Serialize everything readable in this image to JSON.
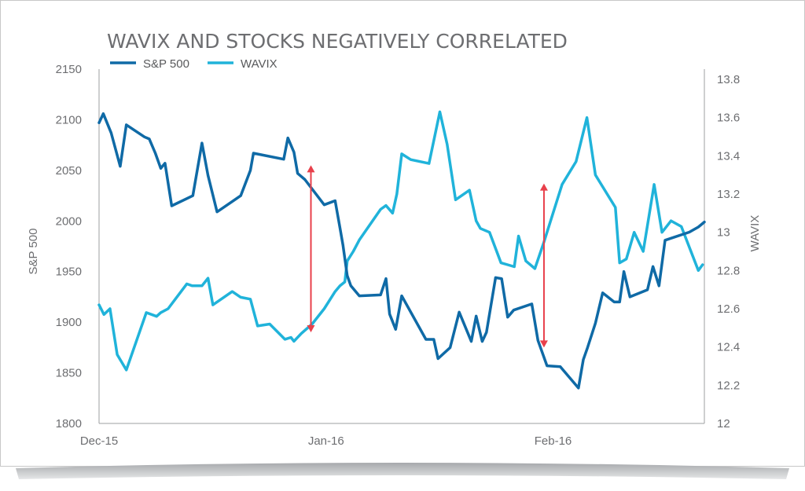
{
  "chart_data": {
    "type": "line",
    "title": "WAVIX AND STOCKS NEGATIVELY CORRELATED",
    "xlabel": "",
    "ylabel_left": "S&P 500",
    "ylabel_right": "WAVIX",
    "x_tick_labels": [
      "Dec-15",
      "Jan-16",
      "Feb-16"
    ],
    "x_tick_positions": [
      0,
      0.375,
      0.75
    ],
    "ylim_left": [
      1800,
      2150
    ],
    "yticks_left": [
      "1800",
      "1850",
      "1900",
      "1950",
      "2000",
      "2050",
      "2100",
      "2150"
    ],
    "ylim_right": [
      12,
      13.8
    ],
    "yticks_right": [
      "12",
      "12.2",
      "12.4",
      "12.6",
      "12.8",
      "13",
      "13.2",
      "13.4",
      "13.6",
      "13.8"
    ],
    "legend": [
      {
        "name": "S&P 500",
        "color": "#0f6aa6"
      },
      {
        "name": "WAVIX",
        "color": "#20b3da"
      }
    ],
    "series": [
      {
        "name": "S&P 500",
        "axis": "left",
        "color": "#0f6aa6",
        "x": [
          0,
          0.007,
          0.02,
          0.035,
          0.045,
          0.075,
          0.083,
          0.093,
          0.102,
          0.109,
          0.12,
          0.155,
          0.17,
          0.18,
          0.195,
          0.2,
          0.234,
          0.25,
          0.255,
          0.305,
          0.312,
          0.322,
          0.328,
          0.34,
          0.372,
          0.39,
          0.398,
          0.403,
          0.41,
          0.416,
          0.43,
          0.465,
          0.474,
          0.48,
          0.49,
          0.5,
          0.54,
          0.553,
          0.56,
          0.58,
          0.595,
          0.615,
          0.623,
          0.633,
          0.64,
          0.655,
          0.665,
          0.675,
          0.685,
          0.715,
          0.725,
          0.74,
          0.762,
          0.792,
          0.8,
          0.807,
          0.82,
          0.832,
          0.851,
          0.86,
          0.867,
          0.877,
          0.906,
          0.915,
          0.925,
          0.935,
          0.975,
          0.99,
          1.0
        ],
        "values": [
          2097,
          2106,
          2087,
          2054,
          2095,
          2083,
          2081,
          2067,
          2052,
          2057,
          2015,
          2025,
          2077,
          2045,
          2009,
          2011,
          2025,
          2050,
          2067,
          2061,
          2082,
          2068,
          2047,
          2041,
          2016,
          2020,
          1993,
          1976,
          1946,
          1936,
          1926,
          1927,
          1943,
          1908,
          1893,
          1926,
          1883,
          1883,
          1864,
          1875,
          1910,
          1881,
          1906,
          1881,
          1890,
          1944,
          1943,
          1905,
          1912,
          1918,
          1882,
          1857,
          1856,
          1835,
          1863,
          1875,
          1899,
          1929,
          1920,
          1920,
          1950,
          1925,
          1932,
          1955,
          1936,
          1981,
          1989,
          1994,
          1999
        ]
      },
      {
        "name": "WAVIX",
        "axis": "right",
        "color": "#20b3da",
        "x": [
          0,
          0.008,
          0.018,
          0.03,
          0.045,
          0.078,
          0.095,
          0.102,
          0.114,
          0.145,
          0.154,
          0.17,
          0.18,
          0.188,
          0.22,
          0.234,
          0.25,
          0.262,
          0.282,
          0.307,
          0.317,
          0.322,
          0.334,
          0.352,
          0.372,
          0.39,
          0.398,
          0.406,
          0.41,
          0.42,
          0.43,
          0.465,
          0.474,
          0.485,
          0.492,
          0.5,
          0.515,
          0.545,
          0.563,
          0.575,
          0.589,
          0.612,
          0.623,
          0.63,
          0.645,
          0.664,
          0.675,
          0.686,
          0.693,
          0.705,
          0.72,
          0.735,
          0.765,
          0.788,
          0.806,
          0.82,
          0.853,
          0.86,
          0.871,
          0.884,
          0.899,
          0.917,
          0.93,
          0.945,
          0.962,
          0.99,
          0.997
        ],
        "values": [
          12.62,
          12.57,
          12.6,
          12.36,
          12.28,
          12.58,
          12.56,
          12.58,
          12.6,
          12.73,
          12.72,
          12.72,
          12.76,
          12.62,
          12.69,
          12.66,
          12.65,
          12.51,
          12.52,
          12.44,
          12.45,
          12.43,
          12.47,
          12.52,
          12.6,
          12.69,
          12.72,
          12.74,
          12.85,
          12.9,
          12.96,
          13.12,
          13.14,
          13.1,
          13.2,
          13.41,
          13.38,
          13.36,
          13.63,
          13.46,
          13.17,
          13.22,
          13.06,
          13.02,
          13.0,
          12.84,
          12.83,
          12.82,
          12.98,
          12.85,
          12.81,
          12.95,
          13.25,
          13.37,
          13.6,
          13.3,
          13.13,
          12.84,
          12.86,
          13.0,
          12.9,
          13.25,
          13.0,
          13.06,
          13.03,
          12.8,
          12.83
        ]
      }
    ],
    "annotations": [
      {
        "type": "double-arrow",
        "x": 0.35,
        "y_top": 2055,
        "y_bottom": 1890,
        "color": "#e8404b"
      },
      {
        "type": "double-arrow",
        "x": 0.735,
        "y_top": 2037,
        "y_bottom": 1875,
        "color": "#e8404b"
      }
    ]
  }
}
